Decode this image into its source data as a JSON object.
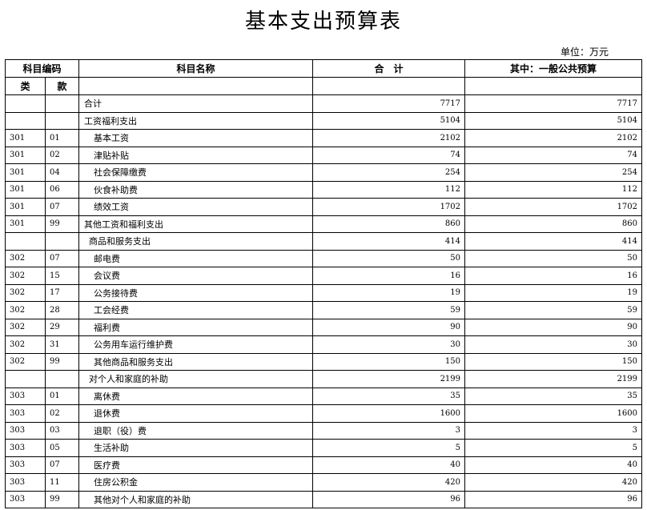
{
  "title": "基本支出预算表",
  "unit": "单位：万元",
  "headers": {
    "code": "科目编码",
    "name": "科目名称",
    "total": "合　计",
    "general": "其中：一般公共预算",
    "lei": "类",
    "kuan": "款"
  },
  "rows": [
    {
      "lei": "",
      "kuan": "",
      "name": "合计",
      "level": 0,
      "total": "7717",
      "general": "7717"
    },
    {
      "lei": "",
      "kuan": "",
      "name": "工资福利支出",
      "level": 0,
      "total": "5104",
      "general": "5104"
    },
    {
      "lei": "301",
      "kuan": "01",
      "name": "基本工资",
      "level": 2,
      "total": "2102",
      "general": "2102"
    },
    {
      "lei": "301",
      "kuan": "02",
      "name": "津贴补贴",
      "level": 2,
      "total": "74",
      "general": "74"
    },
    {
      "lei": "301",
      "kuan": "04",
      "name": "社会保障缴费",
      "level": 2,
      "total": "254",
      "general": "254"
    },
    {
      "lei": "301",
      "kuan": "06",
      "name": "伙食补助费",
      "level": 2,
      "total": "112",
      "general": "112"
    },
    {
      "lei": "301",
      "kuan": "07",
      "name": "绩效工资",
      "level": 2,
      "total": "1702",
      "general": "1702"
    },
    {
      "lei": "301",
      "kuan": "99",
      "name": "其他工资和福利支出",
      "level": 0,
      "total": "860",
      "general": "860"
    },
    {
      "lei": "",
      "kuan": "",
      "name": "商品和服务支出",
      "level": 1,
      "total": "414",
      "general": "414"
    },
    {
      "lei": "302",
      "kuan": "07",
      "name": "邮电费",
      "level": 2,
      "total": "50",
      "general": "50"
    },
    {
      "lei": "302",
      "kuan": "15",
      "name": "会议费",
      "level": 2,
      "total": "16",
      "general": "16"
    },
    {
      "lei": "302",
      "kuan": "17",
      "name": "公务接待费",
      "level": 2,
      "total": "19",
      "general": "19"
    },
    {
      "lei": "302",
      "kuan": "28",
      "name": "工会经费",
      "level": 2,
      "total": "59",
      "general": "59"
    },
    {
      "lei": "302",
      "kuan": "29",
      "name": "福利费",
      "level": 2,
      "total": "90",
      "general": "90"
    },
    {
      "lei": "302",
      "kuan": "31",
      "name": "公务用车运行维护费",
      "level": 2,
      "total": "30",
      "general": "30"
    },
    {
      "lei": "302",
      "kuan": "99",
      "name": "其他商品和服务支出",
      "level": 2,
      "total": "150",
      "general": "150"
    },
    {
      "lei": "",
      "kuan": "",
      "name": "对个人和家庭的补助",
      "level": 1,
      "total": "2199",
      "general": "2199"
    },
    {
      "lei": "303",
      "kuan": "01",
      "name": "离休费",
      "level": 2,
      "total": "35",
      "general": "35"
    },
    {
      "lei": "303",
      "kuan": "02",
      "name": "退休费",
      "level": 2,
      "total": "1600",
      "general": "1600"
    },
    {
      "lei": "303",
      "kuan": "03",
      "name": "退职（役）费",
      "level": 2,
      "total": "3",
      "general": "3"
    },
    {
      "lei": "303",
      "kuan": "05",
      "name": "生活补助",
      "level": 2,
      "total": "5",
      "general": "5"
    },
    {
      "lei": "303",
      "kuan": "07",
      "name": "医疗费",
      "level": 2,
      "total": "40",
      "general": "40"
    },
    {
      "lei": "303",
      "kuan": "11",
      "name": "住房公积金",
      "level": 2,
      "total": "420",
      "general": "420"
    },
    {
      "lei": "303",
      "kuan": "99",
      "name": "其他对个人和家庭的补助",
      "level": 2,
      "total": "96",
      "general": "96"
    }
  ]
}
